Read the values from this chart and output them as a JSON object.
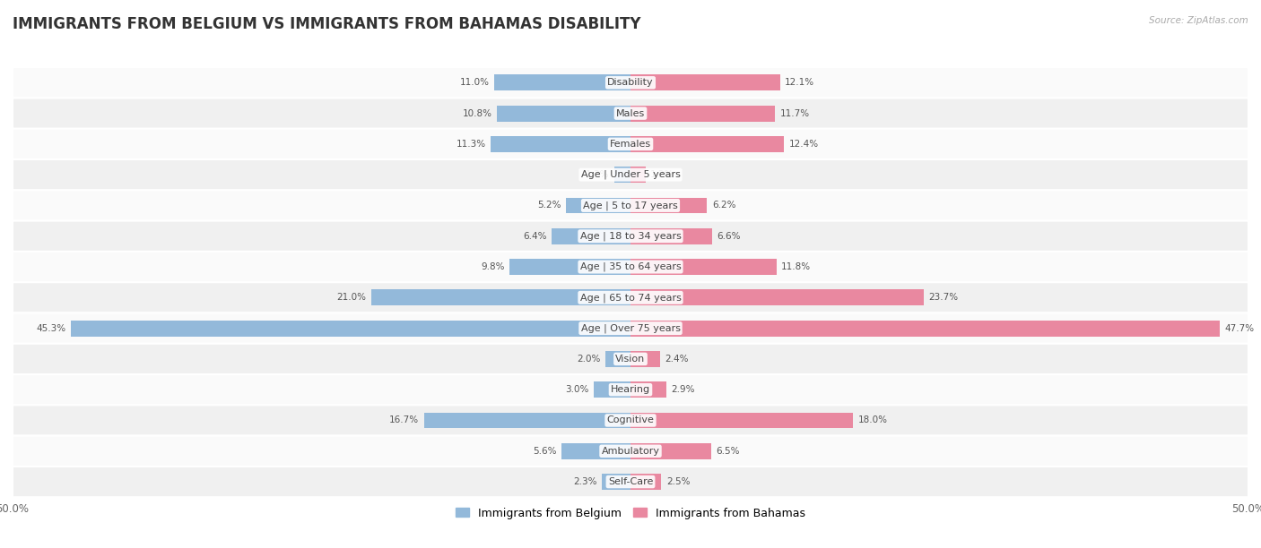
{
  "title": "IMMIGRANTS FROM BELGIUM VS IMMIGRANTS FROM BAHAMAS DISABILITY",
  "source": "Source: ZipAtlas.com",
  "categories": [
    "Disability",
    "Males",
    "Females",
    "Age | Under 5 years",
    "Age | 5 to 17 years",
    "Age | 18 to 34 years",
    "Age | 35 to 64 years",
    "Age | 65 to 74 years",
    "Age | Over 75 years",
    "Vision",
    "Hearing",
    "Cognitive",
    "Ambulatory",
    "Self-Care"
  ],
  "left_values": [
    11.0,
    10.8,
    11.3,
    1.3,
    5.2,
    6.4,
    9.8,
    21.0,
    45.3,
    2.0,
    3.0,
    16.7,
    5.6,
    2.3
  ],
  "right_values": [
    12.1,
    11.7,
    12.4,
    1.2,
    6.2,
    6.6,
    11.8,
    23.7,
    47.7,
    2.4,
    2.9,
    18.0,
    6.5,
    2.5
  ],
  "left_color": "#93b9da",
  "right_color": "#e988a0",
  "left_label": "Immigrants from Belgium",
  "right_label": "Immigrants from Bahamas",
  "bar_height": 0.52,
  "xlim": 50.0,
  "row_bg_odd": "#f0f0f0",
  "row_bg_even": "#fafafa",
  "title_fontsize": 12,
  "label_fontsize": 8,
  "value_fontsize": 7.5,
  "axis_fontsize": 8.5
}
